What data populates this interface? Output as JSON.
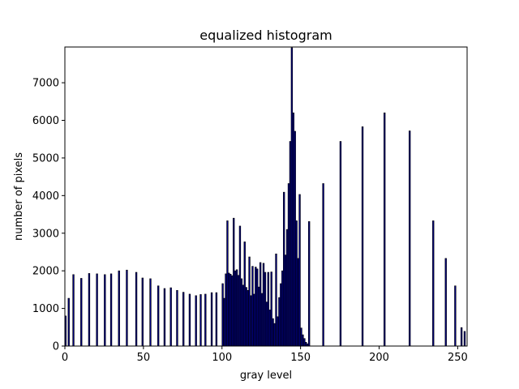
{
  "chart_data": {
    "type": "bar",
    "title": "equalized histogram",
    "xlabel": "gray level",
    "ylabel": "number of pixels",
    "xlim": [
      0,
      256
    ],
    "ylim": [
      0,
      7950
    ],
    "xticks": [
      0,
      50,
      100,
      150,
      200,
      250
    ],
    "yticks": [
      0,
      1000,
      2000,
      3000,
      4000,
      5000,
      6000,
      7000
    ],
    "grid": false,
    "bar_color": "#000080",
    "edge_color": "#000000",
    "bars": [
      {
        "x": 0,
        "y": 800
      },
      {
        "x": 2,
        "y": 1270
      },
      {
        "x": 5,
        "y": 1900
      },
      {
        "x": 10,
        "y": 1800
      },
      {
        "x": 15,
        "y": 1930
      },
      {
        "x": 20,
        "y": 1920
      },
      {
        "x": 25,
        "y": 1900
      },
      {
        "x": 29,
        "y": 1920
      },
      {
        "x": 34,
        "y": 2000
      },
      {
        "x": 39,
        "y": 2020
      },
      {
        "x": 45,
        "y": 1960
      },
      {
        "x": 49,
        "y": 1810
      },
      {
        "x": 54,
        "y": 1790
      },
      {
        "x": 59,
        "y": 1600
      },
      {
        "x": 63,
        "y": 1530
      },
      {
        "x": 67,
        "y": 1550
      },
      {
        "x": 71,
        "y": 1480
      },
      {
        "x": 75,
        "y": 1430
      },
      {
        "x": 79,
        "y": 1380
      },
      {
        "x": 83,
        "y": 1340
      },
      {
        "x": 86,
        "y": 1370
      },
      {
        "x": 89,
        "y": 1380
      },
      {
        "x": 93,
        "y": 1420
      },
      {
        "x": 96,
        "y": 1420
      },
      {
        "x": 100,
        "y": 1660
      },
      {
        "x": 101,
        "y": 1270
      },
      {
        "x": 102,
        "y": 1920
      },
      {
        "x": 103,
        "y": 3330
      },
      {
        "x": 104,
        "y": 1940
      },
      {
        "x": 105,
        "y": 1910
      },
      {
        "x": 106,
        "y": 1870
      },
      {
        "x": 107,
        "y": 3400
      },
      {
        "x": 108,
        "y": 2000
      },
      {
        "x": 109,
        "y": 2030
      },
      {
        "x": 110,
        "y": 1880
      },
      {
        "x": 111,
        "y": 3190
      },
      {
        "x": 112,
        "y": 1790
      },
      {
        "x": 113,
        "y": 1620
      },
      {
        "x": 114,
        "y": 2770
      },
      {
        "x": 115,
        "y": 1560
      },
      {
        "x": 116,
        "y": 1480
      },
      {
        "x": 117,
        "y": 2370
      },
      {
        "x": 118,
        "y": 1340
      },
      {
        "x": 119,
        "y": 2120
      },
      {
        "x": 120,
        "y": 1380
      },
      {
        "x": 121,
        "y": 2100
      },
      {
        "x": 122,
        "y": 2050
      },
      {
        "x": 123,
        "y": 1570
      },
      {
        "x": 124,
        "y": 2220
      },
      {
        "x": 125,
        "y": 1400
      },
      {
        "x": 126,
        "y": 2200
      },
      {
        "x": 127,
        "y": 1960
      },
      {
        "x": 128,
        "y": 1170
      },
      {
        "x": 129,
        "y": 1960
      },
      {
        "x": 130,
        "y": 960
      },
      {
        "x": 131,
        "y": 1970
      },
      {
        "x": 132,
        "y": 730
      },
      {
        "x": 133,
        "y": 600
      },
      {
        "x": 134,
        "y": 2450
      },
      {
        "x": 135,
        "y": 780
      },
      {
        "x": 136,
        "y": 1290
      },
      {
        "x": 137,
        "y": 1660
      },
      {
        "x": 138,
        "y": 2000
      },
      {
        "x": 139,
        "y": 4090
      },
      {
        "x": 140,
        "y": 2420
      },
      {
        "x": 141,
        "y": 3100
      },
      {
        "x": 142,
        "y": 4320
      },
      {
        "x": 143,
        "y": 5440
      },
      {
        "x": 144,
        "y": 7930
      },
      {
        "x": 145,
        "y": 6200
      },
      {
        "x": 146,
        "y": 5710
      },
      {
        "x": 147,
        "y": 3330
      },
      {
        "x": 148,
        "y": 2330
      },
      {
        "x": 149,
        "y": 4030
      },
      {
        "x": 150,
        "y": 480
      },
      {
        "x": 151,
        "y": 300
      },
      {
        "x": 152,
        "y": 200
      },
      {
        "x": 153,
        "y": 100
      },
      {
        "x": 154,
        "y": 60
      },
      {
        "x": 155,
        "y": 3310
      },
      {
        "x": 164,
        "y": 4320
      },
      {
        "x": 175,
        "y": 5440
      },
      {
        "x": 189,
        "y": 5830
      },
      {
        "x": 203,
        "y": 6200
      },
      {
        "x": 219,
        "y": 5720
      },
      {
        "x": 234,
        "y": 3330
      },
      {
        "x": 242,
        "y": 2330
      },
      {
        "x": 248,
        "y": 1600
      },
      {
        "x": 252,
        "y": 490
      },
      {
        "x": 254,
        "y": 390
      }
    ]
  }
}
